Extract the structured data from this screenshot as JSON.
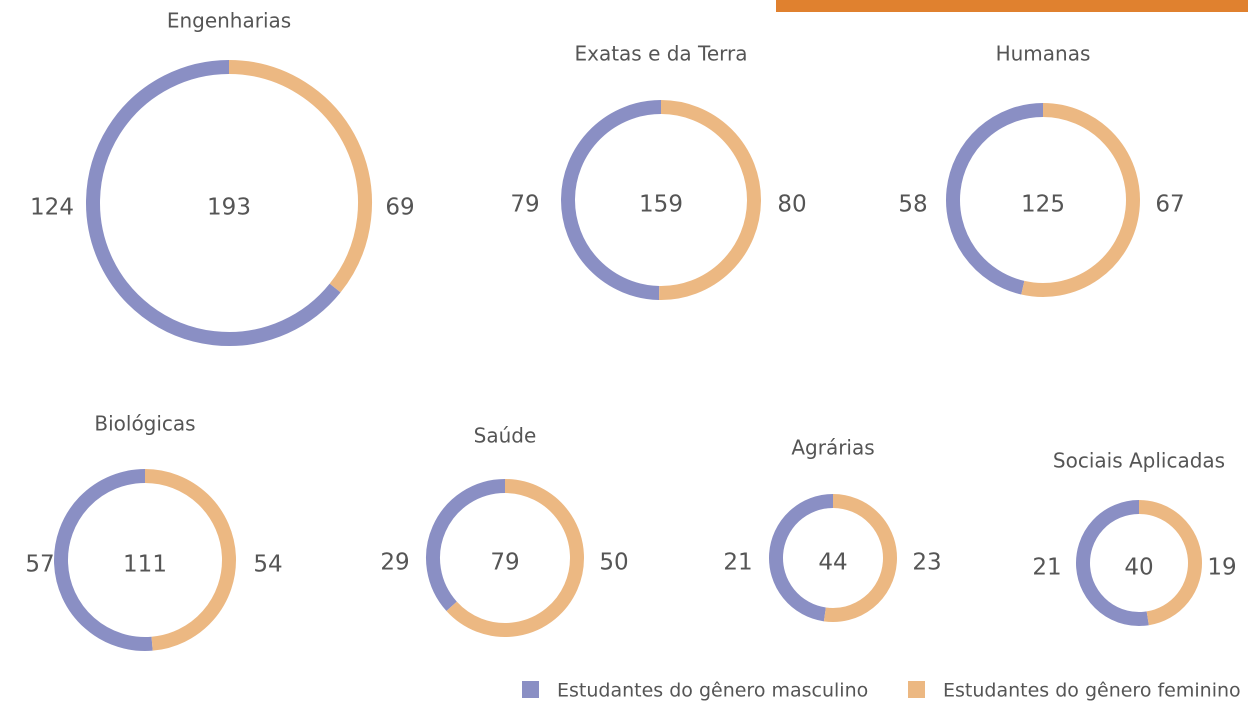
{
  "chart_data": [
    {
      "type": "donut",
      "title": "Engenharias",
      "total": 193,
      "values": [
        124,
        69
      ]
    },
    {
      "type": "donut",
      "title": "Exatas e da Terra",
      "total": 159,
      "values": [
        79,
        80
      ]
    },
    {
      "type": "donut",
      "title": "Humanas",
      "total": 125,
      "values": [
        58,
        67
      ]
    },
    {
      "type": "donut",
      "title": "Biológicas",
      "total": 111,
      "values": [
        57,
        54
      ]
    },
    {
      "type": "donut",
      "title": "Saúde",
      "total": 79,
      "values": [
        29,
        50
      ]
    },
    {
      "type": "donut",
      "title": "Agrárias",
      "total": 44,
      "values": [
        21,
        23
      ]
    },
    {
      "type": "donut",
      "title": "Sociais Aplicadas",
      "total": 40,
      "values": [
        21,
        19
      ]
    }
  ],
  "legend": [
    {
      "name": "Estudantes do gênero masculino",
      "color": "#8a8fc4"
    },
    {
      "name": "Estudantes do gênero feminino",
      "color": "#ecb882"
    }
  ]
}
